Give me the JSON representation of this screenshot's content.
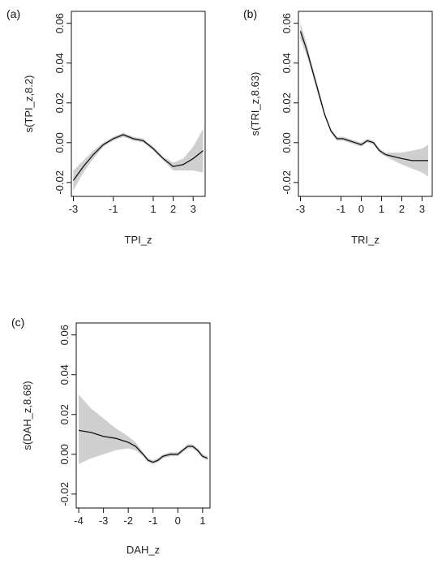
{
  "chart_data": [
    {
      "type": "line",
      "panel_label": "(a)",
      "xlabel": "TPI_z",
      "ylabel": "s(TPI_z,8.2)",
      "xlim": [
        -3.1,
        3.6
      ],
      "ylim": [
        -0.027,
        0.066
      ],
      "xticks": [
        -3,
        -1,
        1,
        2,
        3
      ],
      "xtick_labels": [
        "-3",
        "-1",
        "1",
        "2",
        "3"
      ],
      "yticks": [
        -0.02,
        0.0,
        0.02,
        0.04,
        0.06
      ],
      "ytick_labels": [
        "-0.02",
        "0.00",
        "0.02",
        "0.04",
        "0.06"
      ],
      "grid": false,
      "series": [
        {
          "x": [
            -3.0,
            -2.5,
            -2.0,
            -1.5,
            -1.0,
            -0.5,
            0.0,
            0.5,
            1.0,
            1.5,
            2.0,
            2.5,
            3.0,
            3.5
          ],
          "y": [
            -0.019,
            -0.012,
            -0.006,
            -0.001,
            0.002,
            0.004,
            0.002,
            0.001,
            -0.003,
            -0.008,
            -0.012,
            -0.011,
            -0.008,
            -0.004
          ],
          "lower": [
            -0.024,
            -0.015,
            -0.008,
            -0.002,
            0.001,
            0.003,
            0.001,
            0.0,
            -0.004,
            -0.009,
            -0.014,
            -0.014,
            -0.014,
            -0.015
          ],
          "upper": [
            -0.014,
            -0.009,
            -0.004,
            0.0,
            0.003,
            0.005,
            0.003,
            0.002,
            -0.002,
            -0.007,
            -0.01,
            -0.008,
            -0.002,
            0.007
          ]
        }
      ]
    },
    {
      "type": "line",
      "panel_label": "(b)",
      "xlabel": "TRI_z",
      "ylabel": "s(TRI_z,8.63)",
      "xlim": [
        -3.1,
        3.5
      ],
      "ylim": [
        -0.027,
        0.066
      ],
      "xticks": [
        -3,
        -1,
        0,
        1,
        2,
        3
      ],
      "xtick_labels": [
        "-3",
        "-1",
        "0",
        "1",
        "2",
        "3"
      ],
      "yticks": [
        -0.02,
        0.0,
        0.02,
        0.04,
        0.06
      ],
      "ytick_labels": [
        "-0.02",
        "0.00",
        "0.02",
        "0.04",
        "0.06"
      ],
      "grid": false,
      "series": [
        {
          "x": [
            -3.0,
            -2.7,
            -2.4,
            -2.1,
            -1.8,
            -1.5,
            -1.2,
            -0.9,
            -0.6,
            -0.3,
            0.0,
            0.3,
            0.6,
            0.9,
            1.2,
            1.6,
            2.0,
            2.5,
            3.0,
            3.3
          ],
          "y": [
            0.056,
            0.047,
            0.036,
            0.025,
            0.014,
            0.006,
            0.002,
            0.002,
            0.001,
            0.0,
            -0.001,
            0.001,
            0.0,
            -0.004,
            -0.006,
            -0.007,
            -0.008,
            -0.009,
            -0.009,
            -0.009
          ],
          "lower": [
            0.052,
            0.044,
            0.034,
            0.023,
            0.013,
            0.005,
            0.001,
            0.001,
            0.0,
            -0.001,
            -0.002,
            0.0,
            -0.001,
            -0.005,
            -0.007,
            -0.009,
            -0.011,
            -0.013,
            -0.015,
            -0.017
          ],
          "upper": [
            0.06,
            0.05,
            0.038,
            0.027,
            0.015,
            0.007,
            0.003,
            0.003,
            0.002,
            0.001,
            0.0,
            0.002,
            0.001,
            -0.003,
            -0.005,
            -0.005,
            -0.005,
            -0.004,
            -0.003,
            -0.001
          ]
        }
      ]
    },
    {
      "type": "line",
      "panel_label": "(c)",
      "xlabel": "DAH_z",
      "ylabel": "s(DAH_z,8.68)",
      "xlim": [
        -4.1,
        1.3
      ],
      "ylim": [
        -0.027,
        0.066
      ],
      "xticks": [
        -4,
        -3,
        -2,
        -1,
        0,
        1
      ],
      "xtick_labels": [
        "-4",
        "-3",
        "-2",
        "-1",
        "0",
        "1"
      ],
      "yticks": [
        -0.02,
        0.0,
        0.02,
        0.04,
        0.06
      ],
      "ytick_labels": [
        "-0.02",
        "0.00",
        "0.02",
        "0.04",
        "0.06"
      ],
      "grid": false,
      "series": [
        {
          "x": [
            -4.0,
            -3.5,
            -3.0,
            -2.5,
            -2.0,
            -1.7,
            -1.4,
            -1.2,
            -1.0,
            -0.8,
            -0.6,
            -0.3,
            0.0,
            0.2,
            0.4,
            0.6,
            0.8,
            1.0,
            1.2
          ],
          "y": [
            0.012,
            0.011,
            0.009,
            0.008,
            0.006,
            0.004,
            0.0,
            -0.003,
            -0.004,
            -0.003,
            -0.001,
            0.0,
            0.0,
            0.002,
            0.004,
            0.004,
            0.002,
            -0.001,
            -0.002
          ],
          "lower": [
            -0.005,
            -0.002,
            0.0,
            0.002,
            0.003,
            0.002,
            -0.001,
            -0.004,
            -0.005,
            -0.004,
            -0.002,
            -0.001,
            -0.001,
            0.001,
            0.003,
            0.003,
            0.001,
            -0.002,
            -0.003
          ],
          "upper": [
            0.03,
            0.023,
            0.018,
            0.013,
            0.009,
            0.006,
            0.001,
            -0.002,
            -0.003,
            -0.002,
            0.0,
            0.001,
            0.001,
            0.003,
            0.005,
            0.005,
            0.003,
            0.0,
            -0.001
          ]
        }
      ]
    }
  ]
}
